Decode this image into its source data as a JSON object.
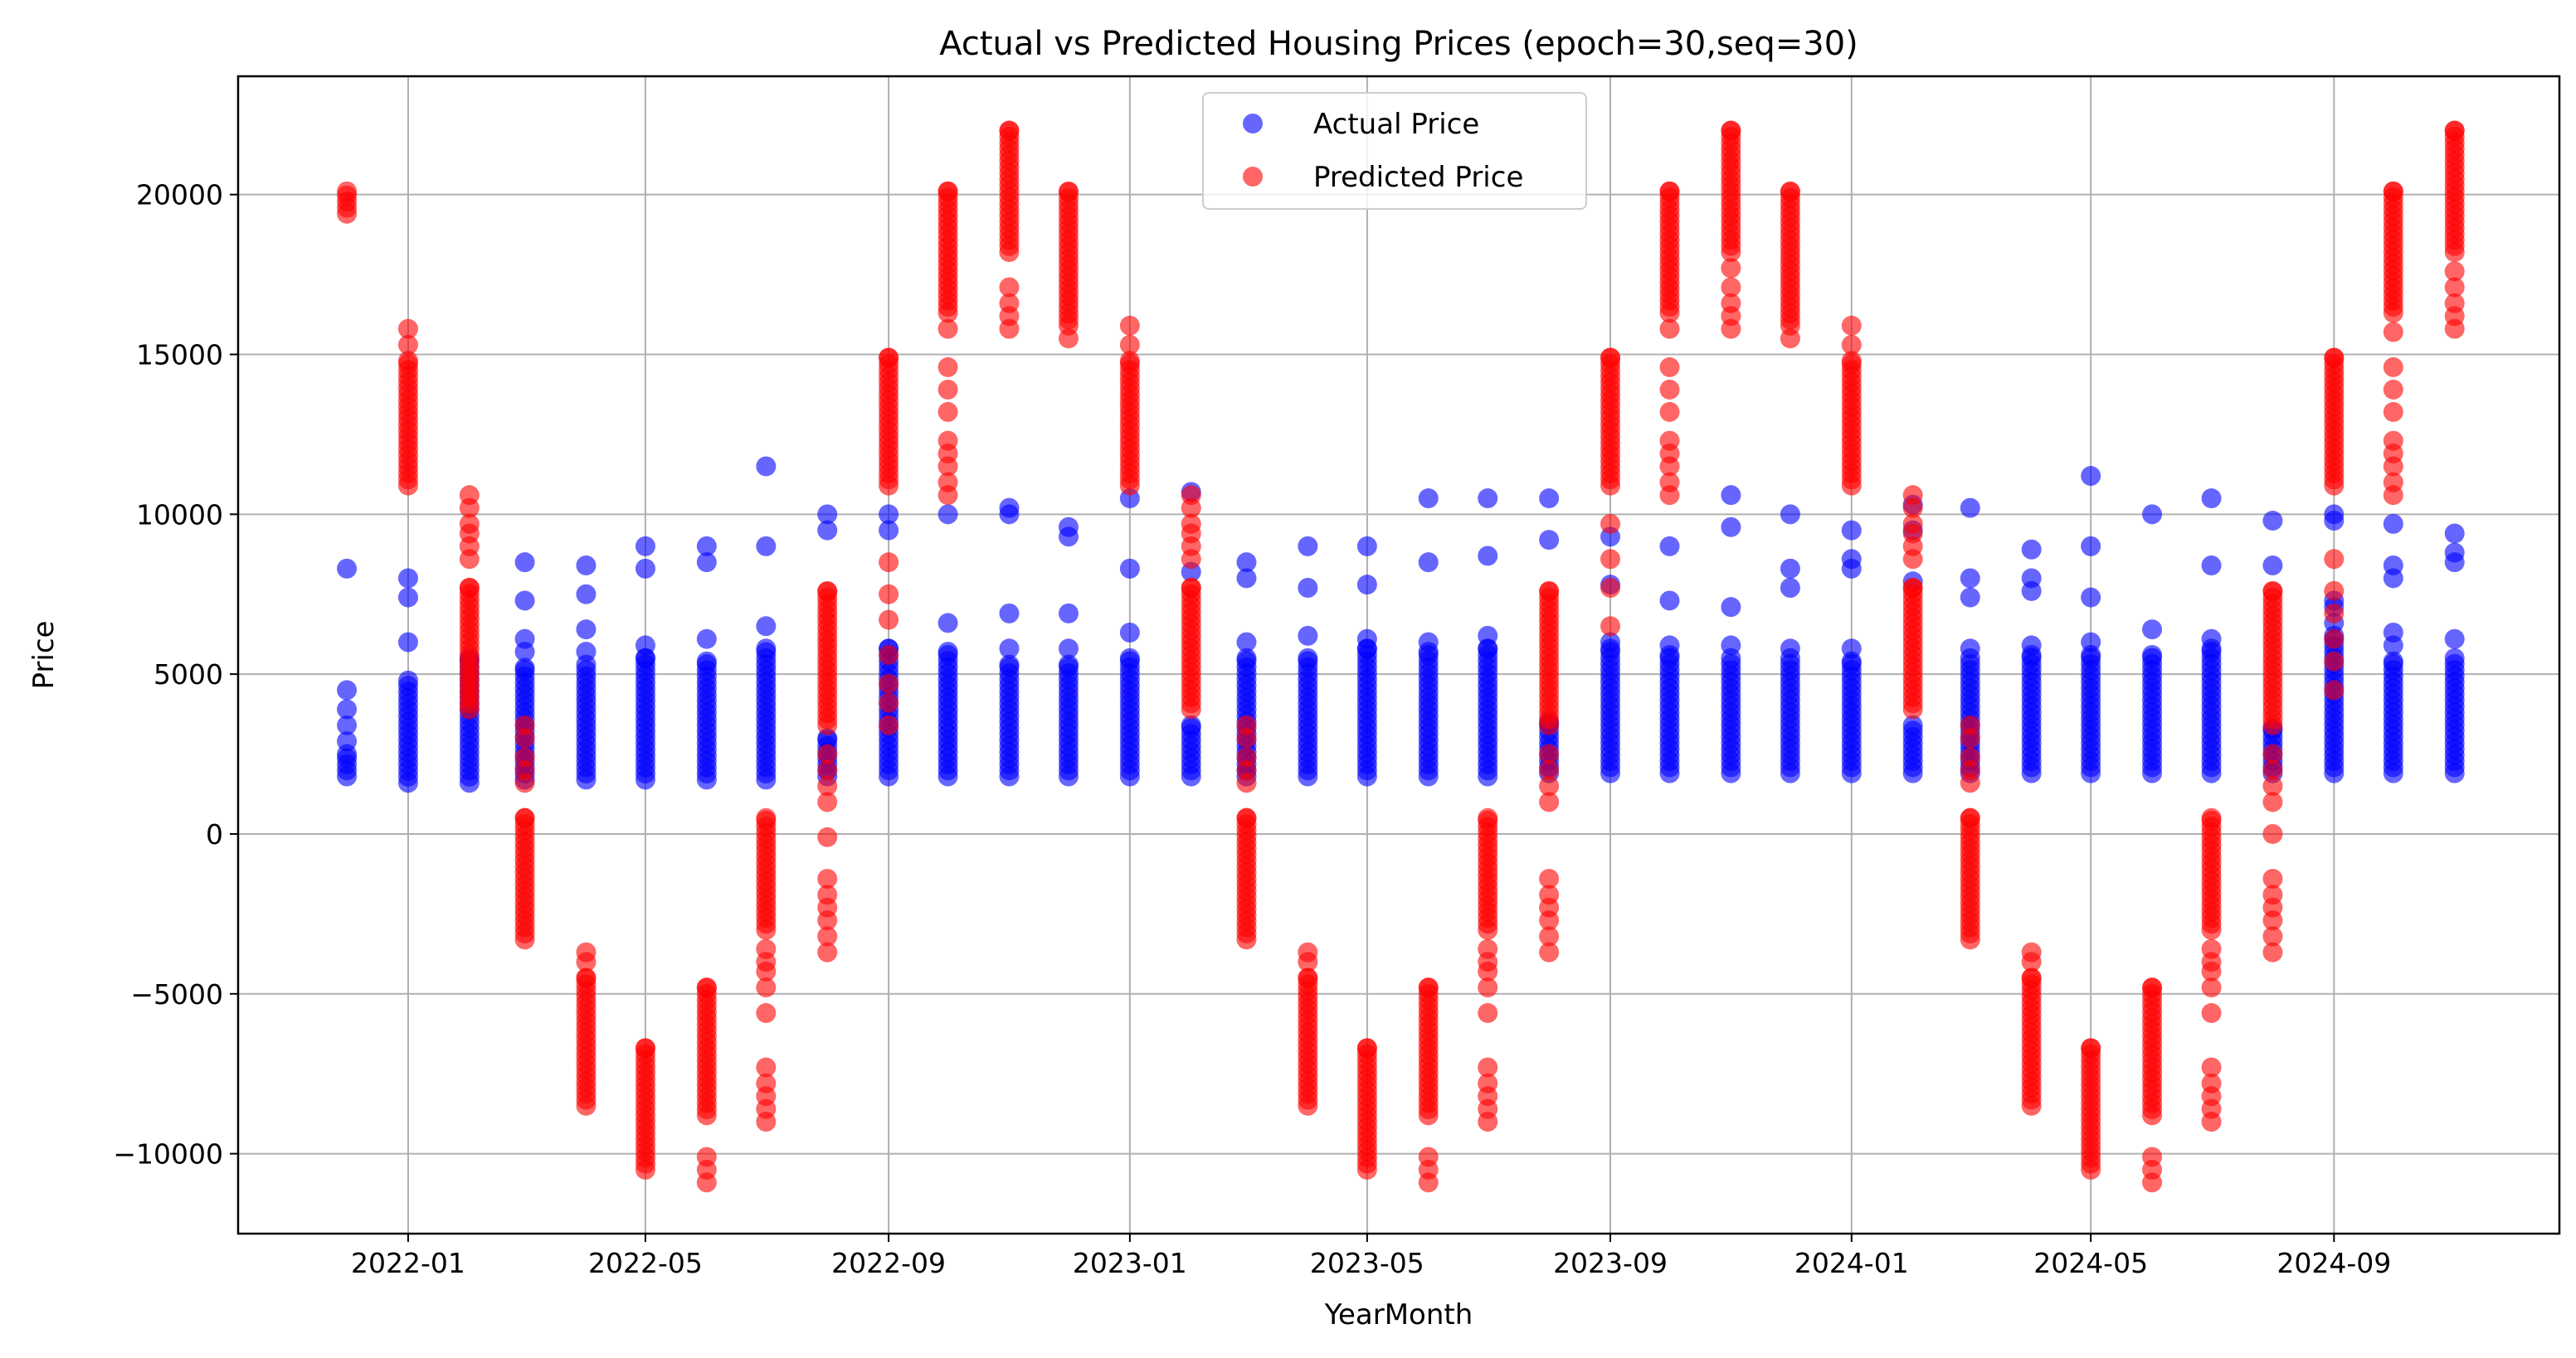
{
  "chart_data": {
    "type": "scatter",
    "title": "Actual vs Predicted Housing Prices (epoch=30,seq=30)",
    "xlabel": "YearMonth",
    "ylabel": "Price",
    "ylim": [
      -12500,
      23700
    ],
    "xlim": [
      "2021-10-07",
      "2024-12-24"
    ],
    "grid": true,
    "legend_position": "top-center",
    "x_ticks": [
      "2022-01",
      "2022-05",
      "2022-09",
      "2023-01",
      "2023-05",
      "2023-09",
      "2024-01",
      "2024-05",
      "2024-09"
    ],
    "y_ticks": [
      -10000,
      -5000,
      0,
      5000,
      10000,
      15000,
      20000
    ],
    "months": [
      "2021-12",
      "2022-01",
      "2022-02",
      "2022-03",
      "2022-04",
      "2022-05",
      "2022-06",
      "2022-07",
      "2022-08",
      "2022-09",
      "2022-10",
      "2022-11",
      "2022-12",
      "2023-01",
      "2023-02",
      "2023-03",
      "2023-04",
      "2023-05",
      "2023-06",
      "2023-07",
      "2023-08",
      "2023-09",
      "2023-10",
      "2023-11",
      "2023-12",
      "2024-01",
      "2024-02",
      "2024-03",
      "2024-04",
      "2024-05",
      "2024-06",
      "2024-07",
      "2024-08",
      "2024-09",
      "2024-10",
      "2024-11"
    ],
    "series": [
      {
        "name": "Actual Price",
        "color": "#0000ff",
        "marker_opacity": 0.6,
        "clusters": [
          {
            "x": "2021-12",
            "low": 1800,
            "high": 2500,
            "outliers": [
              2900,
              3400,
              3900,
              4500,
              8300
            ]
          },
          {
            "x": "2022-01",
            "low": 1600,
            "high": 4800,
            "outliers": [
              6000,
              7400,
              8000
            ]
          },
          {
            "x": "2022-02",
            "low": 1600,
            "high": 5500,
            "outliers": []
          },
          {
            "x": "2022-03",
            "low": 1700,
            "high": 5200,
            "outliers": [
              5700,
              6100,
              7300,
              8500
            ]
          },
          {
            "x": "2022-04",
            "low": 1700,
            "high": 5300,
            "outliers": [
              5700,
              6400,
              7500,
              8400
            ]
          },
          {
            "x": "2022-05",
            "low": 1700,
            "high": 5500,
            "outliers": [
              5900,
              8300,
              9000
            ]
          },
          {
            "x": "2022-06",
            "low": 1700,
            "high": 5400,
            "outliers": [
              6100,
              8500,
              9000
            ]
          },
          {
            "x": "2022-07",
            "low": 1700,
            "high": 5800,
            "outliers": [
              6500,
              9000,
              11500
            ]
          },
          {
            "x": "2022-08",
            "low": 1800,
            "high": 3000,
            "outliers": [
              9500,
              10000
            ]
          },
          {
            "x": "2022-09",
            "low": 1800,
            "high": 5800,
            "outliers": [
              9500,
              10000
            ]
          },
          {
            "x": "2022-10",
            "low": 1800,
            "high": 5700,
            "outliers": [
              6600,
              10000
            ]
          },
          {
            "x": "2022-11",
            "low": 1800,
            "high": 5300,
            "outliers": [
              5800,
              6900,
              10000,
              10200
            ]
          },
          {
            "x": "2022-12",
            "low": 1800,
            "high": 5300,
            "outliers": [
              5800,
              6900,
              9300,
              9600
            ]
          },
          {
            "x": "2023-01",
            "low": 1800,
            "high": 5500,
            "outliers": [
              6300,
              8300,
              10500
            ]
          },
          {
            "x": "2023-02",
            "low": 1800,
            "high": 3400,
            "outliers": [
              8200,
              10700
            ]
          },
          {
            "x": "2023-03",
            "low": 1800,
            "high": 5500,
            "outliers": [
              6000,
              8000,
              8500
            ]
          },
          {
            "x": "2023-04",
            "low": 1800,
            "high": 5500,
            "outliers": [
              6200,
              7700,
              9000
            ]
          },
          {
            "x": "2023-05",
            "low": 1800,
            "high": 5800,
            "outliers": [
              6100,
              7800,
              9000
            ]
          },
          {
            "x": "2023-06",
            "low": 1800,
            "high": 5700,
            "outliers": [
              6000,
              8500,
              10500
            ]
          },
          {
            "x": "2023-07",
            "low": 1800,
            "high": 5800,
            "outliers": [
              6200,
              8700,
              10500
            ]
          },
          {
            "x": "2023-08",
            "low": 1900,
            "high": 3500,
            "outliers": [
              9200,
              10500
            ]
          },
          {
            "x": "2023-09",
            "low": 1900,
            "high": 5800,
            "outliers": [
              6000,
              7800,
              9300
            ]
          },
          {
            "x": "2023-10",
            "low": 1900,
            "high": 5600,
            "outliers": [
              5900,
              7300,
              9000
            ]
          },
          {
            "x": "2023-11",
            "low": 1900,
            "high": 5500,
            "outliers": [
              5900,
              7100,
              9600,
              10600
            ]
          },
          {
            "x": "2023-12",
            "low": 1900,
            "high": 5500,
            "outliers": [
              5800,
              7700,
              8300,
              10000
            ]
          },
          {
            "x": "2024-01",
            "low": 1900,
            "high": 5400,
            "outliers": [
              5800,
              8300,
              8600,
              9500
            ]
          },
          {
            "x": "2024-02",
            "low": 1900,
            "high": 3400,
            "outliers": [
              7900,
              9500,
              10300
            ]
          },
          {
            "x": "2024-03",
            "low": 1900,
            "high": 5500,
            "outliers": [
              5800,
              7400,
              8000,
              10200
            ]
          },
          {
            "x": "2024-04",
            "low": 1900,
            "high": 5600,
            "outliers": [
              5900,
              7600,
              8000,
              8900
            ]
          },
          {
            "x": "2024-05",
            "low": 1900,
            "high": 5600,
            "outliers": [
              6000,
              7400,
              9000,
              11200
            ]
          },
          {
            "x": "2024-06",
            "low": 1900,
            "high": 5600,
            "outliers": [
              6400,
              10000
            ]
          },
          {
            "x": "2024-07",
            "low": 1900,
            "high": 5800,
            "outliers": [
              6100,
              8400,
              10500
            ]
          },
          {
            "x": "2024-08",
            "low": 1900,
            "high": 3300,
            "outliers": [
              8400,
              9800
            ]
          },
          {
            "x": "2024-09",
            "low": 1900,
            "high": 6200,
            "outliers": [
              6600,
              7100,
              7300,
              9800,
              10000
            ]
          },
          {
            "x": "2024-10",
            "low": 1900,
            "high": 5400,
            "outliers": [
              5900,
              6300,
              8000,
              8400,
              9700
            ]
          },
          {
            "x": "2024-11",
            "low": 1900,
            "high": 5500,
            "outliers": [
              6100,
              8500,
              8800,
              9400
            ]
          }
        ]
      },
      {
        "name": "Predicted Price",
        "color": "#ff0000",
        "marker_opacity": 0.6,
        "clusters": [
          {
            "x": "2021-12",
            "low": 19400,
            "high": 20100,
            "outliers": []
          },
          {
            "x": "2022-01",
            "low": 10900,
            "high": 14800,
            "outliers": [
              15300,
              15800
            ]
          },
          {
            "x": "2022-02",
            "low": 3900,
            "high": 7700,
            "outliers": [
              8600,
              9000,
              9400,
              9700,
              10200,
              10600
            ]
          },
          {
            "x": "2022-03",
            "low": -3300,
            "high": 500,
            "outliers": [
              1600,
              2000,
              2400,
              3000,
              3400
            ]
          },
          {
            "x": "2022-04",
            "low": -8500,
            "high": -4500,
            "outliers": [
              -4000,
              -3700
            ]
          },
          {
            "x": "2022-05",
            "low": -10500,
            "high": -6700,
            "outliers": []
          },
          {
            "x": "2022-06",
            "low": -8800,
            "high": -4800,
            "outliers": [
              -10100,
              -10500,
              -10900
            ]
          },
          {
            "x": "2022-07",
            "low": -3000,
            "high": 500,
            "outliers": [
              -3600,
              -4000,
              -4300,
              -4800,
              -5600,
              -7300,
              -7800,
              -8200,
              -8600,
              -9000
            ]
          },
          {
            "x": "2022-08",
            "low": 3400,
            "high": 7600,
            "outliers": [
              -100,
              -1400,
              -1900,
              -2300,
              -2700,
              -3200,
              -3700,
              1000,
              1500,
              2000,
              2500
            ]
          },
          {
            "x": "2022-09",
            "low": 10900,
            "high": 14900,
            "outliers": [
              3400,
              4100,
              4700,
              5600,
              6700,
              7500,
              8500
            ]
          },
          {
            "x": "2022-10",
            "low": 16300,
            "high": 20100,
            "outliers": [
              10600,
              11000,
              11500,
              11900,
              12300,
              13200,
              13900,
              14600,
              15800
            ]
          },
          {
            "x": "2022-11",
            "low": 18200,
            "high": 22000,
            "outliers": [
              15800,
              16200,
              16600,
              17100
            ]
          },
          {
            "x": "2022-12",
            "low": 15900,
            "high": 20100,
            "outliers": [
              15500
            ]
          },
          {
            "x": "2023-01",
            "low": 10900,
            "high": 14800,
            "outliers": [
              15300,
              15900
            ]
          },
          {
            "x": "2023-02",
            "low": 3900,
            "high": 7700,
            "outliers": [
              8600,
              9000,
              9400,
              9700,
              10200,
              10600
            ]
          },
          {
            "x": "2023-03",
            "low": -3300,
            "high": 500,
            "outliers": [
              1600,
              2000,
              2400,
              3000,
              3400
            ]
          },
          {
            "x": "2023-04",
            "low": -8500,
            "high": -4500,
            "outliers": [
              -4000,
              -3700
            ]
          },
          {
            "x": "2023-05",
            "low": -10500,
            "high": -6700,
            "outliers": []
          },
          {
            "x": "2023-06",
            "low": -8800,
            "high": -4800,
            "outliers": [
              -10100,
              -10500,
              -10900
            ]
          },
          {
            "x": "2023-07",
            "low": -3000,
            "high": 500,
            "outliers": [
              -3600,
              -4000,
              -4300,
              -4800,
              -5600,
              -7300,
              -7800,
              -8200,
              -8600,
              -9000
            ]
          },
          {
            "x": "2023-08",
            "low": 3400,
            "high": 7600,
            "outliers": [
              -1400,
              -1900,
              -2300,
              -2700,
              -3200,
              -3700,
              1000,
              1500,
              2000,
              2500
            ]
          },
          {
            "x": "2023-09",
            "low": 10900,
            "high": 14900,
            "outliers": [
              6500,
              7700,
              8600,
              9700
            ]
          },
          {
            "x": "2023-10",
            "low": 16300,
            "high": 20100,
            "outliers": [
              10600,
              11000,
              11500,
              11900,
              12300,
              13200,
              13900,
              14600,
              15800
            ]
          },
          {
            "x": "2023-11",
            "low": 18200,
            "high": 22000,
            "outliers": [
              15800,
              16200,
              16600,
              17100,
              17700
            ]
          },
          {
            "x": "2023-12",
            "low": 15900,
            "high": 20100,
            "outliers": [
              15500
            ]
          },
          {
            "x": "2024-01",
            "low": 10900,
            "high": 14800,
            "outliers": [
              15300,
              15900
            ]
          },
          {
            "x": "2024-02",
            "low": 3900,
            "high": 7700,
            "outliers": [
              8600,
              9000,
              9400,
              9700,
              10200,
              10600
            ]
          },
          {
            "x": "2024-03",
            "low": -3300,
            "high": 500,
            "outliers": [
              1600,
              2000,
              2400,
              3000,
              3400
            ]
          },
          {
            "x": "2024-04",
            "low": -8500,
            "high": -4500,
            "outliers": [
              -4000,
              -3700
            ]
          },
          {
            "x": "2024-05",
            "low": -10500,
            "high": -6700,
            "outliers": []
          },
          {
            "x": "2024-06",
            "low": -8800,
            "high": -4800,
            "outliers": [
              -10100,
              -10500,
              -10900
            ]
          },
          {
            "x": "2024-07",
            "low": -3000,
            "high": 500,
            "outliers": [
              -3600,
              -4000,
              -4300,
              -4800,
              -5600,
              -7300,
              -7800,
              -8200,
              -8600,
              -9000
            ]
          },
          {
            "x": "2024-08",
            "low": 3400,
            "high": 7600,
            "outliers": [
              0,
              -1400,
              -1900,
              -2300,
              -2700,
              -3200,
              -3700,
              1000,
              1500,
              2000,
              2500
            ]
          },
          {
            "x": "2024-09",
            "low": 10900,
            "high": 14900,
            "outliers": [
              4500,
              5400,
              6100,
              6900,
              7600,
              8600
            ]
          },
          {
            "x": "2024-10",
            "low": 16300,
            "high": 20100,
            "outliers": [
              10600,
              11000,
              11500,
              11900,
              12300,
              13200,
              13900,
              14600,
              15700
            ]
          },
          {
            "x": "2024-11",
            "low": 18200,
            "high": 22000,
            "outliers": [
              15800,
              16200,
              16600,
              17100,
              17600
            ]
          }
        ]
      }
    ]
  }
}
